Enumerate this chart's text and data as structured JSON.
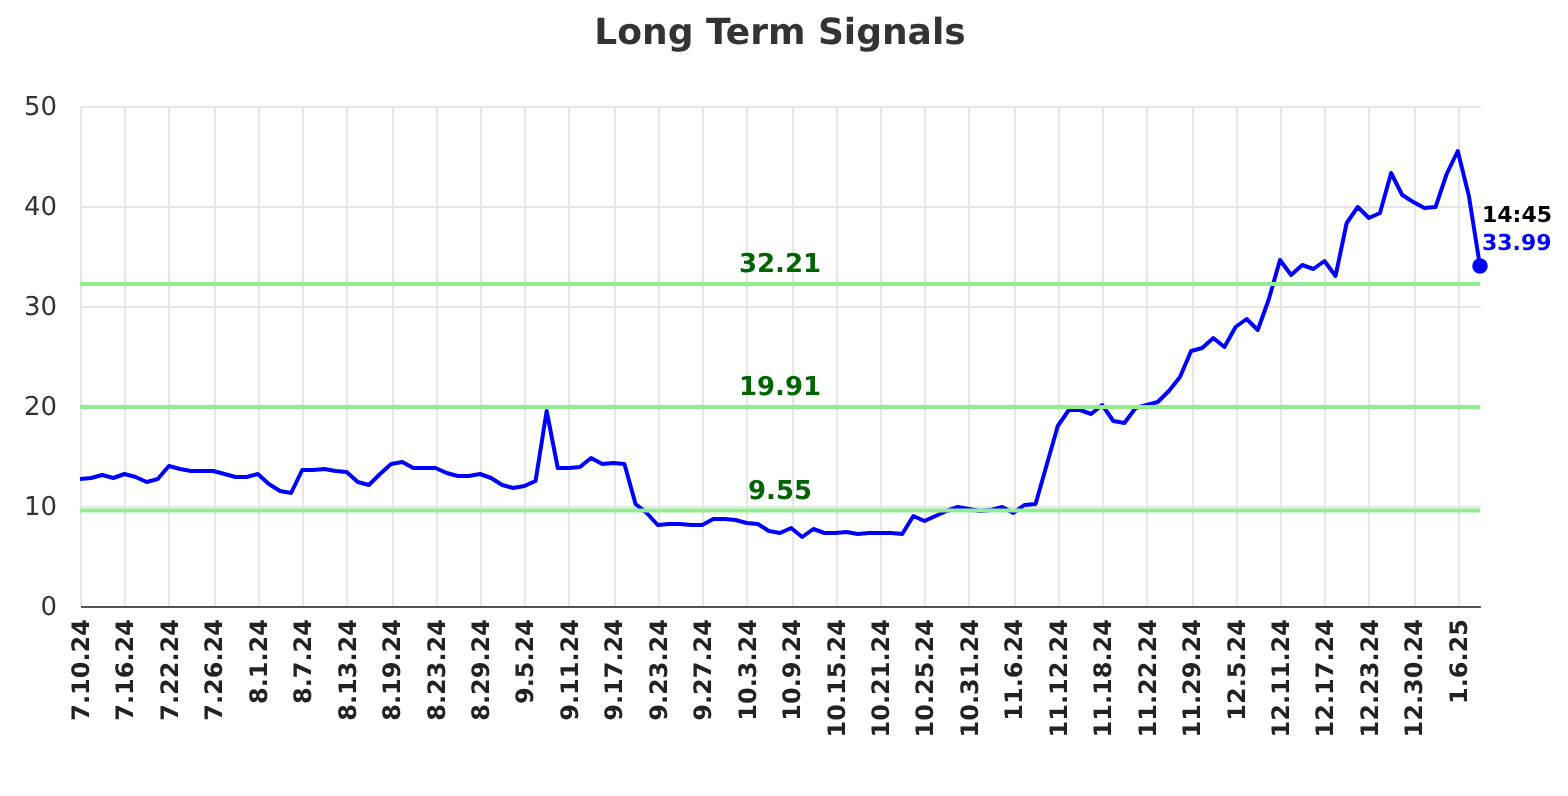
{
  "chart_data": {
    "type": "line",
    "title": "Long Term Signals",
    "categories": [
      "7.10.24",
      null,
      null,
      null,
      "7.16.24",
      null,
      null,
      null,
      "7.22.24",
      null,
      null,
      null,
      "7.26.24",
      null,
      null,
      null,
      "8.1.24",
      null,
      null,
      null,
      "8.7.24",
      null,
      null,
      null,
      "8.13.24",
      null,
      null,
      null,
      "8.19.24",
      null,
      null,
      null,
      "8.23.24",
      null,
      null,
      null,
      "8.29.24",
      null,
      null,
      null,
      "9.5.24",
      null,
      null,
      null,
      "9.11.24",
      null,
      null,
      null,
      "9.17.24",
      null,
      null,
      null,
      "9.23.24",
      null,
      null,
      null,
      "9.27.24",
      null,
      null,
      null,
      "10.3.24",
      null,
      null,
      null,
      "10.9.24",
      null,
      null,
      null,
      "10.15.24",
      null,
      null,
      null,
      "10.21.24",
      null,
      null,
      null,
      "10.25.24",
      null,
      null,
      null,
      "10.31.24",
      null,
      null,
      null,
      "11.6.24",
      null,
      null,
      null,
      "11.12.24",
      null,
      null,
      null,
      "11.18.24",
      null,
      null,
      null,
      "11.22.24",
      null,
      null,
      null,
      "11.29.24",
      null,
      null,
      null,
      "12.5.24",
      null,
      null,
      null,
      "12.11.24",
      null,
      null,
      null,
      "12.17.24",
      null,
      null,
      null,
      "12.23.24",
      null,
      null,
      null,
      "12.30.24",
      null,
      null,
      null,
      "1.6.25",
      null,
      null
    ],
    "series": [
      {
        "color": "#0000ff",
        "values": [
          12.7,
          12.8,
          13.1,
          12.8,
          13.2,
          12.9,
          12.4,
          12.7,
          14.0,
          13.7,
          13.5,
          13.5,
          13.5,
          13.2,
          12.9,
          12.9,
          13.2,
          12.2,
          11.5,
          11.3,
          13.6,
          13.6,
          13.7,
          13.5,
          13.4,
          12.4,
          12.1,
          13.2,
          14.2,
          14.4,
          13.8,
          13.8,
          13.8,
          13.3,
          13.0,
          13.0,
          13.2,
          12.8,
          12.1,
          11.8,
          12.0,
          12.5,
          19.5,
          13.8,
          13.8,
          13.9,
          14.8,
          14.2,
          14.3,
          14.2,
          10.2,
          9.3,
          8.1,
          8.2,
          8.2,
          8.1,
          8.1,
          8.7,
          8.7,
          8.6,
          8.3,
          8.2,
          7.5,
          7.3,
          7.8,
          6.9,
          7.7,
          7.3,
          7.3,
          7.4,
          7.2,
          7.3,
          7.3,
          7.3,
          7.2,
          9.0,
          8.5,
          9.0,
          9.5,
          9.9,
          9.7,
          9.5,
          9.6,
          9.9,
          9.3,
          10.1,
          10.2,
          14.1,
          18.0,
          19.6,
          19.6,
          19.2,
          20.1,
          18.5,
          18.3,
          19.8,
          20.1,
          20.4,
          21.5,
          22.9,
          25.5,
          25.8,
          26.8,
          25.9,
          27.9,
          28.7,
          27.6,
          30.7,
          34.6,
          33.1,
          34.1,
          33.7,
          34.5,
          33.0,
          38.3,
          39.9,
          38.8,
          39.3,
          43.3,
          41.1,
          40.4,
          39.8,
          39.9,
          43.2,
          45.5,
          41.0,
          33.99
        ],
        "value_labels": [
          null,
          null,
          null,
          null,
          null,
          null,
          null,
          null,
          null,
          null,
          null,
          null,
          null,
          null,
          null,
          null,
          null,
          null,
          null,
          null,
          null,
          null,
          null,
          null,
          null,
          null,
          null,
          null,
          null,
          null,
          null,
          null,
          null,
          null,
          null,
          null,
          null,
          null,
          null,
          null,
          null,
          null,
          null,
          null,
          null,
          null,
          null,
          null,
          null,
          null,
          null,
          null,
          null,
          null,
          null,
          null,
          null,
          null,
          null,
          null,
          null,
          null,
          null,
          null,
          null,
          null,
          null,
          null,
          null,
          null,
          null,
          null,
          null,
          null,
          null,
          null,
          null,
          null,
          null,
          null,
          null,
          null,
          null,
          null,
          null,
          null,
          null,
          null,
          null,
          null,
          null,
          null,
          null,
          null,
          null,
          null,
          null,
          null,
          null,
          null,
          null,
          null,
          null,
          null,
          null,
          null,
          null,
          null,
          null,
          null,
          null,
          null,
          null,
          null,
          null,
          null,
          null,
          null,
          null,
          null,
          null,
          null,
          null,
          null,
          null,
          null,
          "33.99"
        ]
      }
    ],
    "ylim": [
      0,
      50
    ],
    "yticks": [
      0,
      10,
      20,
      30,
      40,
      50
    ],
    "grid": true,
    "marker": "none",
    "line_style": "solid",
    "ref_lines": [
      {
        "axis": "y",
        "value": 32.21,
        "label": "32.21",
        "color": "#90ee90"
      },
      {
        "axis": "y",
        "value": 19.91,
        "label": "19.91",
        "color": "#90ee90"
      },
      {
        "axis": "y",
        "value": 9.55,
        "label": "9.55",
        "color": "#90ee90"
      }
    ],
    "annotations": [
      "14:45"
    ]
  }
}
